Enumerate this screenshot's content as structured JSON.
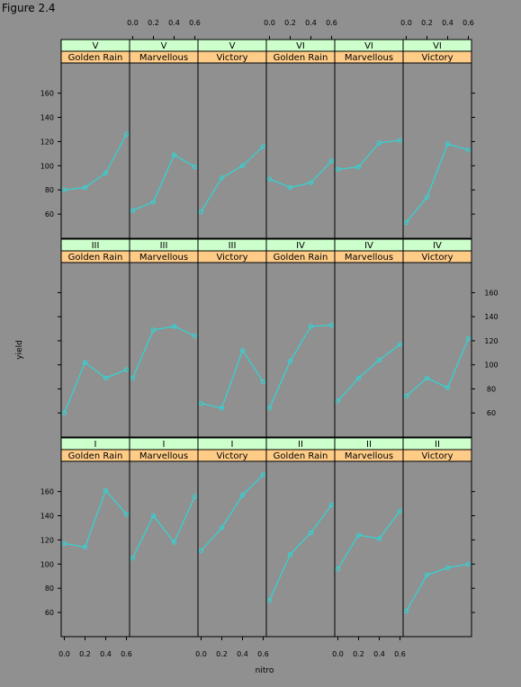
{
  "figure_title": "Figure 2.4",
  "colors": {
    "background": "#909090",
    "line": "#2fd6d6",
    "strip_block": "#ccffcc",
    "strip_variety": "#ffcc88",
    "frame": "#000000"
  },
  "chart_data": {
    "type": "line",
    "layout": "lattice 6 columns x 3 rows",
    "xlabel": "nitro",
    "ylabel": "yield",
    "xlim": [
      -0.03,
      0.63
    ],
    "ylim": [
      40,
      185
    ],
    "x_ticks": [
      0.0,
      0.2,
      0.4,
      0.6
    ],
    "x_tick_labels": [
      "0.0",
      "0.2",
      "0.4",
      "0.6"
    ],
    "y_ticks": [
      60,
      80,
      100,
      120,
      140,
      160
    ],
    "y_tick_labels": [
      "60",
      "80",
      "100",
      "120",
      "140",
      "160"
    ],
    "x": [
      0.0,
      0.2,
      0.4,
      0.6
    ],
    "panels": [
      {
        "block": "V",
        "variety": "Golden Rain",
        "values": [
          80,
          82,
          94,
          126
        ]
      },
      {
        "block": "V",
        "variety": "Marvellous",
        "values": [
          63,
          70,
          109,
          99
        ]
      },
      {
        "block": "V",
        "variety": "Victory",
        "values": [
          62,
          90,
          100,
          116
        ]
      },
      {
        "block": "VI",
        "variety": "Golden Rain",
        "values": [
          89,
          82,
          86,
          104
        ]
      },
      {
        "block": "VI",
        "variety": "Marvellous",
        "values": [
          97,
          99,
          119,
          121
        ]
      },
      {
        "block": "VI",
        "variety": "Victory",
        "values": [
          53,
          74,
          118,
          113
        ]
      },
      {
        "block": "III",
        "variety": "Golden Rain",
        "values": [
          60,
          102,
          89,
          96
        ]
      },
      {
        "block": "III",
        "variety": "Marvellous",
        "values": [
          89,
          129,
          132,
          124
        ]
      },
      {
        "block": "III",
        "variety": "Victory",
        "values": [
          68,
          64,
          112,
          86
        ]
      },
      {
        "block": "IV",
        "variety": "Golden Rain",
        "values": [
          64,
          103,
          132,
          133
        ]
      },
      {
        "block": "IV",
        "variety": "Marvellous",
        "values": [
          70,
          89,
          104,
          117
        ]
      },
      {
        "block": "IV",
        "variety": "Victory",
        "values": [
          74,
          89,
          81,
          122
        ]
      },
      {
        "block": "I",
        "variety": "Golden Rain",
        "values": [
          117,
          114,
          161,
          141
        ]
      },
      {
        "block": "I",
        "variety": "Marvellous",
        "values": [
          105,
          140,
          118,
          156
        ]
      },
      {
        "block": "I",
        "variety": "Victory",
        "values": [
          111,
          130,
          157,
          174
        ]
      },
      {
        "block": "II",
        "variety": "Golden Rain",
        "values": [
          70,
          108,
          126,
          149
        ]
      },
      {
        "block": "II",
        "variety": "Marvellous",
        "values": [
          96,
          124,
          121,
          144
        ]
      },
      {
        "block": "II",
        "variety": "Victory",
        "values": [
          61,
          91,
          97,
          100
        ]
      }
    ]
  }
}
